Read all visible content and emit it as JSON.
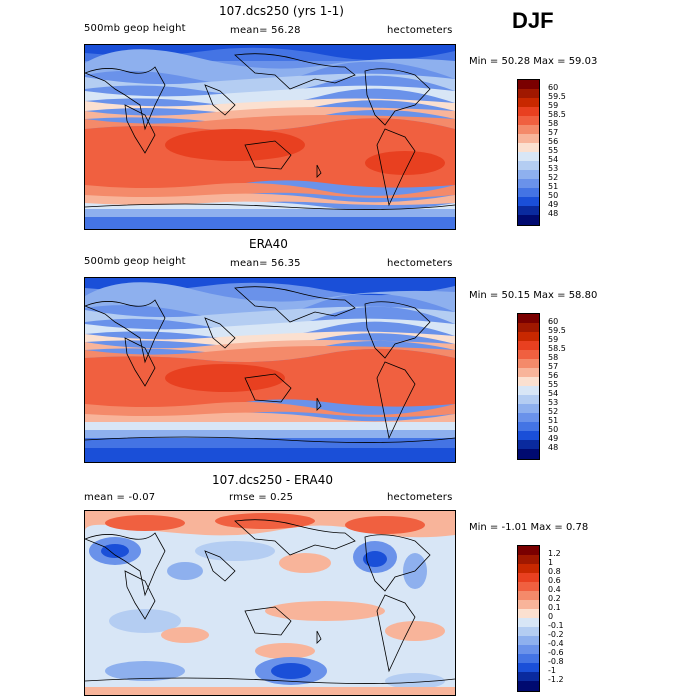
{
  "season": "DJF",
  "panels": [
    {
      "title": "107.dcs250 (yrs 1-1)",
      "sub_left": "500mb geop height",
      "sub_center": "mean=  56.28",
      "units": "hectometers",
      "minmax": "Min =  50.28 Max =  59.03",
      "levels": [
        "60",
        "59.5",
        "59",
        "58.5",
        "58",
        "57",
        "56",
        "55",
        "54",
        "53",
        "52",
        "51",
        "50",
        "49",
        "48"
      ]
    },
    {
      "title": "ERA40",
      "sub_left": "500mb geop height",
      "sub_center": "mean=  56.35",
      "units": "hectometers",
      "minmax": "Min =  50.15 Max =  58.80",
      "levels": [
        "60",
        "59.5",
        "59",
        "58.5",
        "58",
        "57",
        "56",
        "55",
        "54",
        "53",
        "52",
        "51",
        "50",
        "49",
        "48"
      ]
    },
    {
      "title": "107.dcs250 - ERA40",
      "sub_left": "mean =  -0.07",
      "sub_center": "rmse =   0.25",
      "units": "hectometers",
      "minmax": "Min =  -1.01 Max =   0.78",
      "levels": [
        "1.2",
        "1",
        "0.8",
        "0.6",
        "0.4",
        "0.2",
        "0.1",
        "0",
        "-0.1",
        "-0.2",
        "-0.4",
        "-0.6",
        "-0.8",
        "-1",
        "-1.2"
      ]
    }
  ],
  "colors": {
    "height_scale": [
      "#7a0000",
      "#a01800",
      "#c82800",
      "#e84020",
      "#f06040",
      "#f48a6a",
      "#f8b49a",
      "#fbe0d0",
      "#d8e6f6",
      "#b4cdf2",
      "#8eb0ee",
      "#6a92ea",
      "#4474e4",
      "#1a4fd8",
      "#0a2a9e",
      "#000a70"
    ],
    "diff_scale": [
      "#7a0000",
      "#a01800",
      "#c82800",
      "#e84020",
      "#f06040",
      "#f48a6a",
      "#f8b49a",
      "#fbe0d0",
      "#d8e6f6",
      "#b4cdf2",
      "#8eb0ee",
      "#6a92ea",
      "#4474e4",
      "#1a4fd8",
      "#0a2a9e",
      "#000a70"
    ]
  }
}
